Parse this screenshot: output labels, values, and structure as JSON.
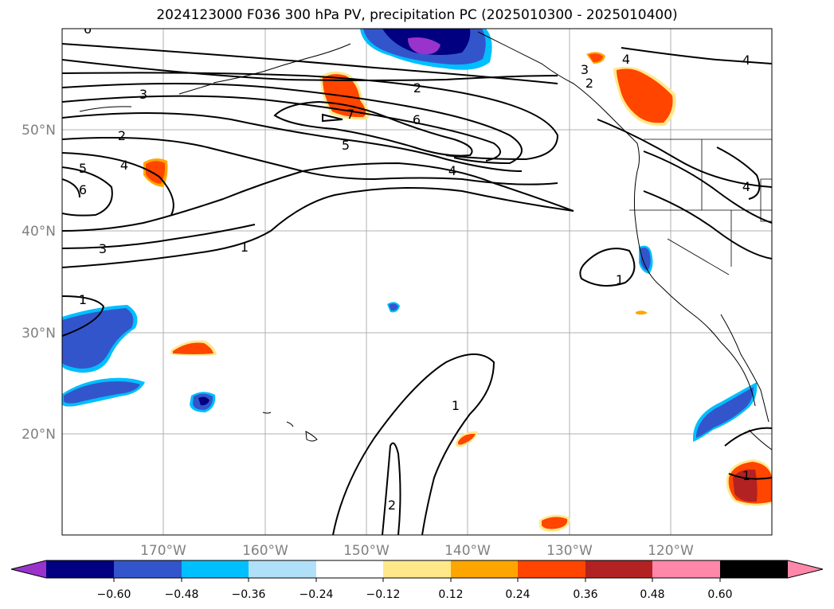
{
  "title": "2024123000 F036 300 hPa PV, precipitation PC (2025010300 - 2025010400)",
  "lat_ticks": [
    "50°N",
    "40°N",
    "30°N",
    "20°N"
  ],
  "lon_ticks": [
    "170°W",
    "160°W",
    "150°W",
    "140°W",
    "130°W",
    "120°W"
  ],
  "colorbar": {
    "tick_labels": [
      "−0.60",
      "−0.48",
      "−0.36",
      "−0.24",
      "−0.12",
      "0.12",
      "0.24",
      "0.36",
      "0.48",
      "0.60"
    ],
    "colors": [
      "#9933cc",
      "#000080",
      "#3355cc",
      "#00bfff",
      "#b0e0f8",
      "#ffffff",
      "#ffe88a",
      "#ffa500",
      "#ff4500",
      "#b22222",
      "#ff88aa"
    ]
  },
  "contour_labels": [
    "6",
    "3",
    "2",
    "5",
    "4",
    "6",
    "3",
    "1",
    "2",
    "6",
    "7",
    "5",
    "4",
    "1",
    "3",
    "2",
    "4",
    "4",
    "4",
    "1",
    "1",
    "2",
    "1"
  ]
}
